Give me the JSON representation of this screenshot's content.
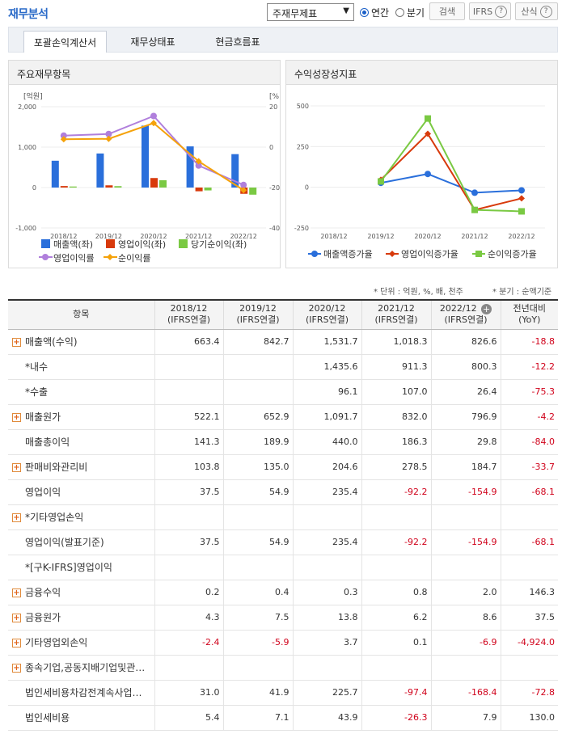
{
  "header": {
    "title": "재무분석",
    "select_value": "주재무제표",
    "radio_annual": "연간",
    "radio_quarter": "분기",
    "search_label": "검색",
    "ifrs_label": "IFRS",
    "calc_label": "산식"
  },
  "tabs": [
    "포괄손익계산서",
    "재무상태표",
    "현금흐름표"
  ],
  "chart1": {
    "title": "주요재무항목",
    "left_unit": "[억원]",
    "right_unit": "[%]",
    "left_ticks": [
      "2,000",
      "1,000",
      "0",
      "-1,000"
    ],
    "right_ticks": [
      "20",
      "0",
      "-20",
      "-40"
    ],
    "categories": [
      "2018/12",
      "2019/12",
      "2020/12",
      "2021/12",
      "2022/12"
    ],
    "legend": [
      "매출액(좌)",
      "영업이익(좌)",
      "당기순이익(좌)",
      "영업이익률",
      "순이익률"
    ]
  },
  "chart2": {
    "title": "수익성장성지표",
    "y_ticks": [
      "500",
      "250",
      "0",
      "-250"
    ],
    "categories": [
      "2018/12",
      "2019/12",
      "2020/12",
      "2021/12",
      "2022/12"
    ],
    "legend": [
      "매출액증가율",
      "영업이익증가율",
      "순이익증가율"
    ]
  },
  "chart_data": [
    {
      "type": "bar",
      "title": "주요재무항목",
      "categories": [
        "2018/12",
        "2019/12",
        "2020/12",
        "2021/12",
        "2022/12"
      ],
      "ylim": [
        -1000,
        2000
      ],
      "y2lim": [
        -40,
        20
      ],
      "series": [
        {
          "name": "매출액(좌)",
          "axis": "left",
          "values": [
            663.4,
            842.7,
            1531.7,
            1018.3,
            826.6
          ],
          "color": "#2a6fdb"
        },
        {
          "name": "영업이익(좌)",
          "axis": "left",
          "values": [
            37.5,
            54.9,
            235.4,
            -92.2,
            -154.9
          ],
          "color": "#d83a0c"
        },
        {
          "name": "당기순이익(좌)",
          "axis": "left",
          "values": [
            25.6,
            34.8,
            181.8,
            -71.1,
            -176.3
          ],
          "color": "#7ac943"
        },
        {
          "name": "영업이익률",
          "axis": "right",
          "type": "line",
          "values": [
            5.7,
            6.5,
            15.4,
            -9.1,
            -18.7
          ],
          "color": "#b07fdc"
        },
        {
          "name": "순이익률",
          "axis": "right",
          "type": "line",
          "values": [
            3.9,
            4.1,
            11.9,
            -7.0,
            -21.3
          ],
          "color": "#f5a20a"
        }
      ]
    },
    {
      "type": "line",
      "title": "수익성장성지표",
      "categories": [
        "2018/12",
        "2019/12",
        "2020/12",
        "2021/12",
        "2022/12"
      ],
      "ylim": [
        -250,
        500
      ],
      "series": [
        {
          "name": "매출액증가율",
          "values": [
            null,
            27.0,
            81.8,
            -33.5,
            -18.8
          ],
          "color": "#2a6fdb"
        },
        {
          "name": "영업이익증가율",
          "values": [
            null,
            46.4,
            328.8,
            -139.2,
            -68.1
          ],
          "color": "#d83a0c"
        },
        {
          "name": "순이익증가율",
          "values": [
            null,
            35.9,
            422.4,
            -139.1,
            -148.0
          ],
          "color": "#7ac943"
        }
      ]
    }
  ],
  "notes": {
    "unit": "* 단위 : 억원, %, 배, 천주",
    "quarter": "* 분기 : 순액기준"
  },
  "table": {
    "headers": [
      {
        "l1": "항목",
        "l2": ""
      },
      {
        "l1": "2018/12",
        "l2": "(IFRS연결)"
      },
      {
        "l1": "2019/12",
        "l2": "(IFRS연결)"
      },
      {
        "l1": "2020/12",
        "l2": "(IFRS연결)"
      },
      {
        "l1": "2021/12",
        "l2": "(IFRS연결)"
      },
      {
        "l1": "2022/12",
        "l2": "(IFRS연결)"
      },
      {
        "l1": "전년대비",
        "l2": "(YoY)"
      }
    ],
    "rows": [
      {
        "label": "매출액(수익)",
        "expand": true,
        "cells": [
          "663.4",
          "842.7",
          "1,531.7",
          "1,018.3",
          "826.6",
          "-18.8"
        ]
      },
      {
        "label": "*내수",
        "expand": false,
        "cells": [
          "",
          "",
          "1,435.6",
          "911.3",
          "800.3",
          "-12.2"
        ]
      },
      {
        "label": "*수출",
        "expand": false,
        "cells": [
          "",
          "",
          "96.1",
          "107.0",
          "26.4",
          "-75.3"
        ]
      },
      {
        "label": "매출원가",
        "expand": true,
        "cells": [
          "522.1",
          "652.9",
          "1,091.7",
          "832.0",
          "796.9",
          "-4.2"
        ]
      },
      {
        "label": "매출총이익",
        "expand": false,
        "cells": [
          "141.3",
          "189.9",
          "440.0",
          "186.3",
          "29.8",
          "-84.0"
        ]
      },
      {
        "label": "판매비와관리비",
        "expand": true,
        "cells": [
          "103.8",
          "135.0",
          "204.6",
          "278.5",
          "184.7",
          "-33.7"
        ]
      },
      {
        "label": "영업이익",
        "expand": false,
        "cells": [
          "37.5",
          "54.9",
          "235.4",
          "-92.2",
          "-154.9",
          "-68.1"
        ]
      },
      {
        "label": "*기타영업손익",
        "expand": true,
        "cells": [
          "",
          "",
          "",
          "",
          "",
          ""
        ]
      },
      {
        "label": "영업이익(발표기준)",
        "expand": false,
        "cells": [
          "37.5",
          "54.9",
          "235.4",
          "-92.2",
          "-154.9",
          "-68.1"
        ]
      },
      {
        "label": "*[구K-IFRS]영업이익",
        "expand": false,
        "cells": [
          "",
          "",
          "",
          "",
          "",
          ""
        ]
      },
      {
        "label": "금융수익",
        "expand": true,
        "cells": [
          "0.2",
          "0.4",
          "0.3",
          "0.8",
          "2.0",
          "146.3"
        ]
      },
      {
        "label": "금융원가",
        "expand": true,
        "cells": [
          "4.3",
          "7.5",
          "13.8",
          "6.2",
          "8.6",
          "37.5"
        ]
      },
      {
        "label": "기타영업외손익",
        "expand": true,
        "cells": [
          "-2.4",
          "-5.9",
          "3.7",
          "0.1",
          "-6.9",
          "-4,924.0"
        ]
      },
      {
        "label": "종속기업,공동지배기업및관…",
        "expand": true,
        "cells": [
          "",
          "",
          "",
          "",
          "",
          ""
        ]
      },
      {
        "label": "법인세비용차감전계속사업…",
        "expand": false,
        "cells": [
          "31.0",
          "41.9",
          "225.7",
          "-97.4",
          "-168.4",
          "-72.8"
        ]
      },
      {
        "label": "법인세비용",
        "expand": false,
        "cells": [
          "5.4",
          "7.1",
          "43.9",
          "-26.3",
          "7.9",
          "130.0"
        ]
      }
    ]
  }
}
